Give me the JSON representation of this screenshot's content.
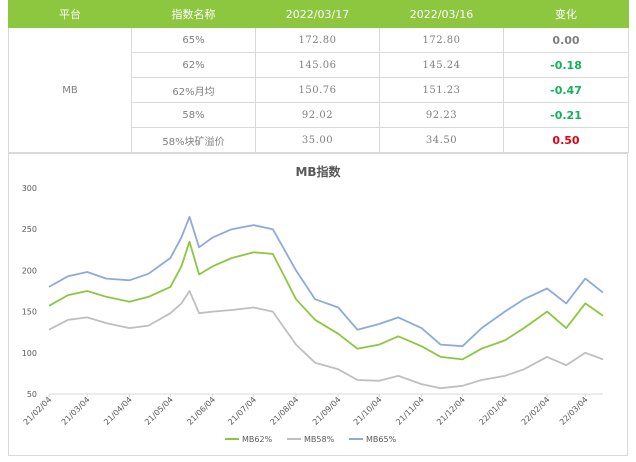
{
  "table": {
    "headers": [
      "平台",
      "指数名称",
      "2022/03/17",
      "2022/03/16",
      "变化"
    ],
    "platform": "MB",
    "rows": [
      {
        "name": "65%",
        "v1": "172.80",
        "v2": "172.80",
        "change": "0.00",
        "dir": "neutral"
      },
      {
        "name": "62%",
        "v1": "145.06",
        "v2": "145.24",
        "change": "-0.18",
        "dir": "down"
      },
      {
        "name": "62%月均",
        "v1": "150.76",
        "v2": "151.23",
        "change": "-0.47",
        "dir": "down"
      },
      {
        "name": "58%",
        "v1": "92.02",
        "v2": "92.23",
        "change": "-0.21",
        "dir": "down"
      },
      {
        "name": "58%块矿溢价",
        "v1": "35.00",
        "v2": "34.50",
        "change": "0.50",
        "dir": "up"
      }
    ]
  },
  "colors": {
    "header_bg": "#8dc63f",
    "MB62%": "#8dc63f",
    "MB58%": "#bfbfbf",
    "MB65%": "#8eaadb",
    "down": "#15b05b",
    "up": "#e60012"
  },
  "chart_data": {
    "type": "line",
    "title": "MB指数",
    "xlabel": "",
    "ylabel": "",
    "ylim": [
      50,
      300
    ],
    "yticks": [
      50,
      100,
      150,
      200,
      250,
      300
    ],
    "grid": false,
    "legend": "bottom",
    "x_tick_labels": [
      "21/02/04",
      "21/03/04",
      "21/04/04",
      "21/05/04",
      "21/06/04",
      "21/07/04",
      "21/08/04",
      "21/09/04",
      "21/10/04",
      "21/11/04",
      "21/12/04",
      "22/01/04",
      "22/02/04",
      "22/03/04"
    ],
    "x": [
      "21/02/04",
      "21/02/18",
      "21/03/04",
      "21/03/18",
      "21/04/04",
      "21/04/18",
      "21/05/04",
      "21/05/12",
      "21/05/18",
      "21/05/25",
      "21/06/04",
      "21/06/18",
      "21/07/04",
      "21/07/18",
      "21/08/04",
      "21/08/18",
      "21/09/04",
      "21/09/18",
      "21/10/04",
      "21/10/18",
      "21/11/04",
      "21/11/18",
      "21/12/04",
      "21/12/18",
      "22/01/04",
      "22/01/18",
      "22/02/04",
      "22/02/18",
      "22/03/04",
      "22/03/17"
    ],
    "series": [
      {
        "name": "MB62%",
        "values": [
          157,
          170,
          175,
          168,
          162,
          168,
          180,
          205,
          235,
          195,
          205,
          215,
          222,
          220,
          165,
          140,
          123,
          105,
          110,
          120,
          108,
          95,
          92,
          105,
          115,
          130,
          150,
          130,
          160,
          145
        ]
      },
      {
        "name": "MB58%",
        "values": [
          128,
          140,
          143,
          136,
          130,
          133,
          148,
          160,
          175,
          148,
          150,
          152,
          155,
          150,
          110,
          88,
          80,
          67,
          66,
          72,
          62,
          57,
          60,
          67,
          72,
          80,
          95,
          85,
          100,
          92
        ]
      },
      {
        "name": "MB65%",
        "values": [
          180,
          193,
          198,
          190,
          188,
          196,
          215,
          240,
          265,
          228,
          240,
          250,
          255,
          250,
          200,
          165,
          155,
          128,
          135,
          143,
          130,
          110,
          108,
          130,
          150,
          165,
          178,
          160,
          190,
          173
        ]
      }
    ]
  }
}
